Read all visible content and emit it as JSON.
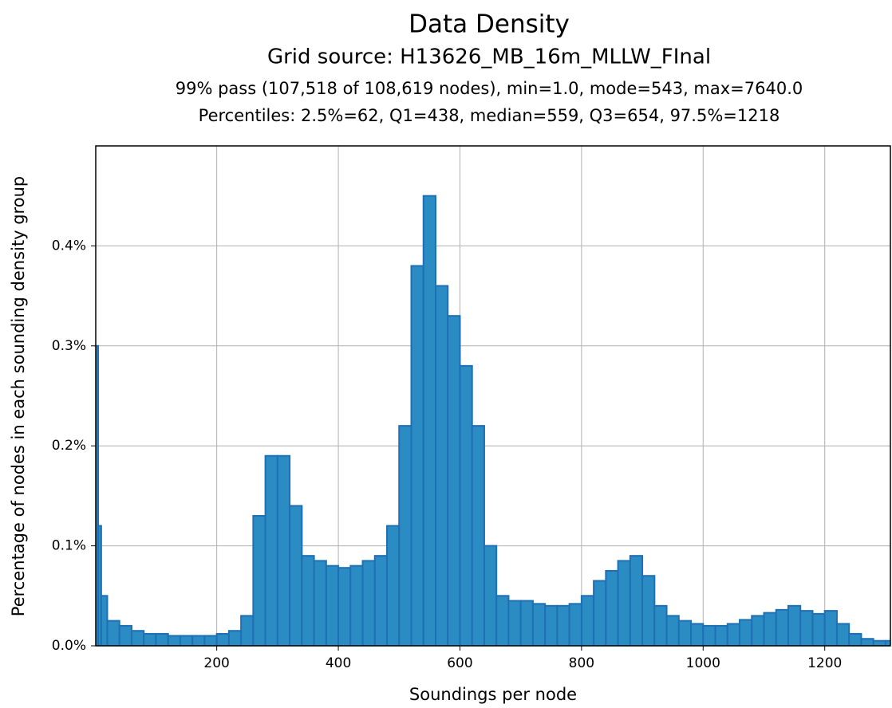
{
  "chart_data": {
    "type": "histogram",
    "title": "Data Density",
    "subtitle": "Grid source: H13626_MB_16m_MLLW_FInal",
    "annotations": [
      "99% pass (107,518 of 108,619 nodes), min=1.0, mode=543, max=7640.0",
      "Percentiles: 2.5%=62, Q1=438, median=559, Q3=654, 97.5%=1218"
    ],
    "xlabel": "Soundings per node",
    "ylabel": "Percentage of nodes in each sounding density group",
    "color": "#2b8cc4",
    "bins": [
      0,
      5,
      10,
      20,
      40,
      60,
      80,
      100,
      120,
      140,
      160,
      180,
      200,
      220,
      240,
      260,
      280,
      300,
      320,
      340,
      360,
      380,
      400,
      420,
      440,
      460,
      480,
      500,
      520,
      540,
      560,
      580,
      600,
      620,
      640,
      660,
      680,
      700,
      720,
      740,
      760,
      780,
      800,
      820,
      840,
      860,
      880,
      900,
      920,
      940,
      960,
      980,
      1000,
      1020,
      1040,
      1060,
      1080,
      1100,
      1120,
      1140,
      1160,
      1180,
      1200,
      1220,
      1240,
      1260,
      1280,
      1300,
      1308
    ],
    "values": [
      0.3,
      0.12,
      0.05,
      0.025,
      0.02,
      0.015,
      0.012,
      0.012,
      0.01,
      0.01,
      0.01,
      0.01,
      0.012,
      0.015,
      0.03,
      0.13,
      0.19,
      0.19,
      0.14,
      0.09,
      0.085,
      0.08,
      0.078,
      0.08,
      0.085,
      0.09,
      0.12,
      0.22,
      0.38,
      0.45,
      0.36,
      0.33,
      0.28,
      0.22,
      0.1,
      0.05,
      0.045,
      0.045,
      0.042,
      0.04,
      0.04,
      0.042,
      0.05,
      0.065,
      0.075,
      0.085,
      0.09,
      0.07,
      0.04,
      0.03,
      0.025,
      0.022,
      0.02,
      0.02,
      0.022,
      0.026,
      0.03,
      0.033,
      0.036,
      0.04,
      0.035,
      0.032,
      0.035,
      0.022,
      0.012,
      0.007,
      0.005,
      0.005
    ],
    "xlim": [
      1,
      1308
    ],
    "ylim": [
      0,
      0.5
    ],
    "xticks": [
      200,
      400,
      600,
      800,
      1000,
      1200
    ],
    "yticks": [
      {
        "value": 0,
        "label": "0.0%"
      },
      {
        "value": 0.1,
        "label": "0.1%"
      },
      {
        "value": 0.2,
        "label": "0.2%"
      },
      {
        "value": 0.3,
        "label": "0.3%"
      },
      {
        "value": 0.4,
        "label": "0.4%"
      }
    ],
    "grid": true
  }
}
